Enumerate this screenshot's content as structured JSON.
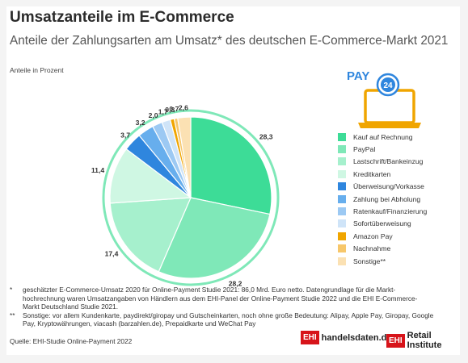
{
  "header": {
    "title": "Umsatzanteile im E-Commerce",
    "subtitle": "Anteile der Zahlungsarten am Umsatz* des deutschen E-Commerce-Markt 2021"
  },
  "chart_data": {
    "type": "pie",
    "unit_label": "Anteile in Prozent",
    "slices": [
      {
        "name": "Kauf auf Rechnung",
        "value": 28.3,
        "label": "28,3",
        "color": "#3ddc97"
      },
      {
        "name": "PayPal",
        "value": 28.2,
        "label": "28,2",
        "color": "#7fe8b8"
      },
      {
        "name": "Lastschrift/Bankeinzug",
        "value": 17.4,
        "label": "17,4",
        "color": "#a6f0cd"
      },
      {
        "name": "Kreditkarten",
        "value": 11.4,
        "label": "11,4",
        "color": "#cff7e3"
      },
      {
        "name": "Überweisung/Vorkasse",
        "value": 3.7,
        "label": "3,7",
        "color": "#2f86de"
      },
      {
        "name": "Zahlung bei Abholung",
        "value": 3.2,
        "label": "3,2",
        "color": "#67aeed"
      },
      {
        "name": "Ratenkauf/Finanzierung",
        "value": 2.0,
        "label": "2,0",
        "color": "#9cc9f3"
      },
      {
        "name": "Sofortüberweisung",
        "value": 1.7,
        "label": "1,7",
        "color": "#cfe4f8"
      },
      {
        "name": "Amazon Pay",
        "value": 0.8,
        "label": "0,8",
        "color": "#f0a500"
      },
      {
        "name": "Nachnahme",
        "value": 0.7,
        "label": "0,7",
        "color": "#f7c76a"
      },
      {
        "name": "Sonstige**",
        "value": 2.6,
        "label": "2,6",
        "color": "#fbe1b3"
      }
    ],
    "legend_position": "right"
  },
  "icon": {
    "name": "laptop-pay-24-icon",
    "text": "PAY",
    "badge": "24",
    "accent": "#f0a500",
    "blue": "#2f86de"
  },
  "footnotes": [
    {
      "mark": "*",
      "text": "geschätzter E-Commerce-Umsatz 2020 für Online-Payment Studie 2021: 86,0 Mrd. Euro netto. Datengrundlage für die Markt-hochrechnung waren Umsatzangaben von Händlern aus dem EHI-Panel der Online-Payment Studie 2022 und die EHI E-Commerce-Markt Deutschland Studie 2021."
    },
    {
      "mark": "**",
      "text": "Sonstige: vor allem Kundenkarte, paydirekt/giropay und Gutscheinkarten, noch ohne große Bedeutung: Alipay, Apple Pay, Giropay, Google Pay, Kryptowährungen, viacash (barzahlen.de), Prepaidkarte und WeChat Pay"
    }
  ],
  "source": "Quelle: EHI-Studie Online-Payment 2022",
  "logos": [
    {
      "box": "EHI",
      "text": "handelsdaten.de"
    },
    {
      "box": "EHI",
      "text": "Retail Institute"
    }
  ],
  "colors": {
    "brand_red": "#d7141a",
    "ring": "#7fe8b8"
  }
}
